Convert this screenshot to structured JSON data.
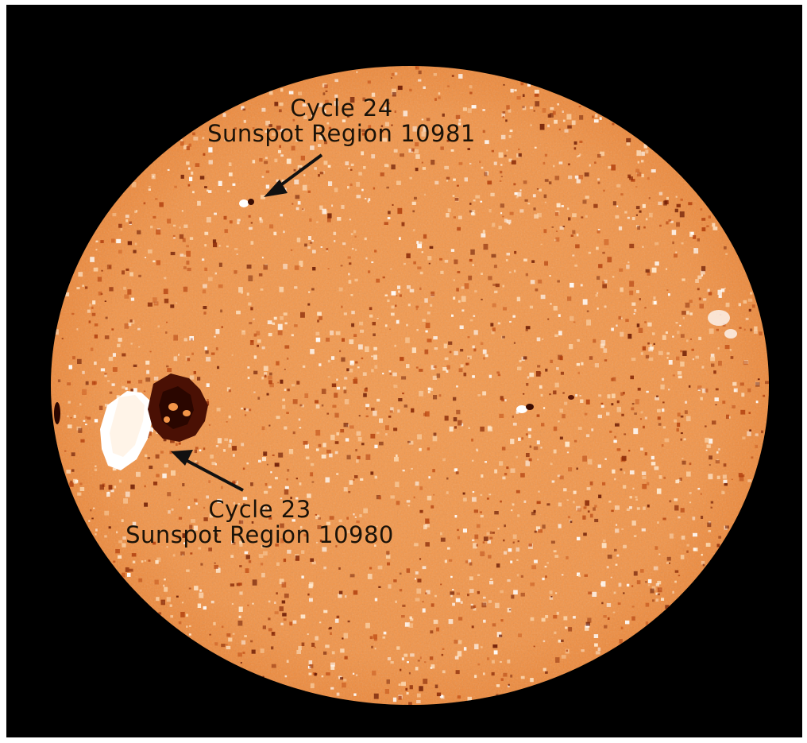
{
  "colors": {
    "background": "#000000",
    "disk": "#f29448",
    "disk_light": "#f6a75f",
    "bright_region": "#ffffff",
    "dark_region": "#5a1606",
    "label_text": "#1a1208"
  },
  "annotations": [
    {
      "cycle": "Cycle 24",
      "region": "Sunspot Region 10981"
    },
    {
      "cycle": "Cycle 23",
      "region": "Sunspot Region 10980"
    }
  ]
}
